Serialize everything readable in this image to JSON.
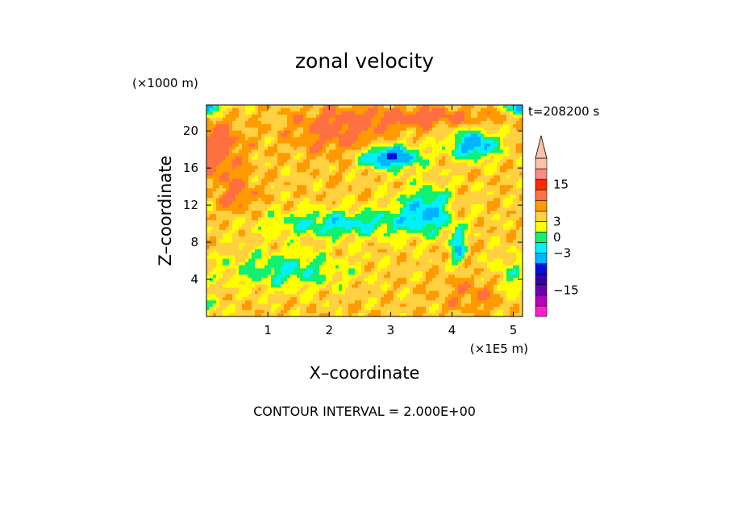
{
  "chart_data": {
    "type": "heatmap",
    "title": "zonal velocity",
    "xlabel": "X–coordinate",
    "ylabel": "Z–coordinate",
    "x_unit_label": "(×1E5 m)",
    "y_unit_label": "(×1000 m)",
    "time_label": "t=208200 s",
    "footer": "CONTOUR INTERVAL = 2.000E+00",
    "xlim": [
      0,
      5.15
    ],
    "ylim": [
      0,
      22.8
    ],
    "x_ticks": [
      {
        "value": 1,
        "label": "1"
      },
      {
        "value": 2,
        "label": "2"
      },
      {
        "value": 3,
        "label": "3"
      },
      {
        "value": 4,
        "label": "4"
      },
      {
        "value": 5,
        "label": "5"
      }
    ],
    "y_ticks": [
      {
        "value": 4,
        "label": "4"
      },
      {
        "value": 8,
        "label": "8"
      },
      {
        "value": 12,
        "label": "12"
      },
      {
        "value": 16,
        "label": "16"
      },
      {
        "value": 20,
        "label": "20"
      }
    ],
    "colorbar": {
      "levels": [
        -21,
        -17,
        -13,
        -9,
        -5,
        -3,
        -1,
        1,
        3,
        5,
        9,
        13,
        17
      ],
      "colors": [
        "#ff1ccd",
        "#b800b8",
        "#6a00b0",
        "#3300aa",
        "#0010e0",
        "#00b4ff",
        "#00f0ff",
        "#11f070",
        "#ffff00",
        "#ffd040",
        "#ff9a00",
        "#ff7040",
        "#ff2800",
        "#ff8888",
        "#ffc0a8"
      ],
      "tick_labels": [
        {
          "value": 15,
          "label": "15"
        },
        {
          "value": 3,
          "label": "3"
        },
        {
          "value": 0,
          "label": "0"
        },
        {
          "value": -3,
          "label": "−3"
        },
        {
          "value": -15,
          "label": "−15"
        }
      ]
    }
  }
}
